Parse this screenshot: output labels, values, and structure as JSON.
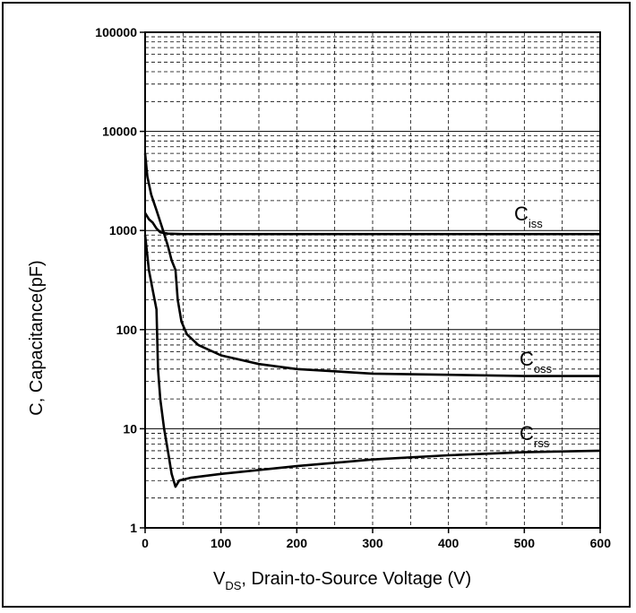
{
  "chart_data": {
    "type": "line",
    "title": "",
    "xlabel": {
      "main": "V",
      "sub": "DS",
      "rest": ", Drain-to-Source Voltage (V)"
    },
    "ylabel": "C, Capacitance(pF)",
    "x_scale": "linear",
    "y_scale": "log",
    "xlim": [
      0,
      600
    ],
    "ylim": [
      1,
      100000
    ],
    "x_ticks": [
      "0",
      "100",
      "200",
      "300",
      "400",
      "500",
      "600"
    ],
    "y_ticks": [
      "1",
      "10",
      "100",
      "1000",
      "10000",
      "100000"
    ],
    "grid": true,
    "series": [
      {
        "name": "Ciss",
        "label_main": "C",
        "label_sub": "iss",
        "x": [
          0,
          5,
          10,
          15,
          20,
          30,
          50,
          100,
          200,
          300,
          400,
          500,
          600
        ],
        "y": [
          1500,
          1300,
          1200,
          1050,
          960,
          930,
          920,
          920,
          920,
          920,
          920,
          920,
          920
        ]
      },
      {
        "name": "Coss",
        "label_main": "C",
        "label_sub": "oss",
        "x": [
          0,
          3,
          8,
          15,
          22,
          30,
          35,
          40,
          43,
          48,
          55,
          70,
          100,
          150,
          200,
          300,
          400,
          500,
          600
        ],
        "y": [
          6000,
          3500,
          2300,
          1600,
          1100,
          700,
          500,
          400,
          200,
          120,
          90,
          70,
          55,
          45,
          40,
          36,
          35,
          34,
          34
        ]
      },
      {
        "name": "Crss",
        "label_main": "C",
        "label_sub": "rss",
        "x": [
          0,
          5,
          10,
          15,
          17,
          20,
          25,
          30,
          35,
          40,
          45,
          60,
          100,
          200,
          300,
          400,
          500,
          600
        ],
        "y": [
          900,
          400,
          250,
          160,
          40,
          20,
          10,
          6,
          3.5,
          2.6,
          3,
          3.2,
          3.5,
          4.2,
          4.9,
          5.4,
          5.8,
          6
        ]
      }
    ]
  }
}
